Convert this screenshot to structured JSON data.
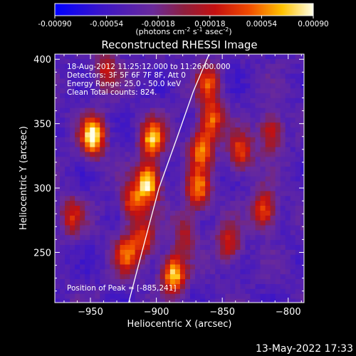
{
  "colorbar": {
    "ticks": [
      "-0.00090",
      "-0.00054",
      "-0.00018",
      "0.00018",
      "0.00054",
      "0.00090"
    ],
    "units": "(photons cm",
    "units_exp1": "-2",
    "units_mid": " s",
    "units_exp2": "-1",
    "units_mid2": " asec",
    "units_exp3": "-2",
    "units_end": ")"
  },
  "chart_data": {
    "type": "heatmap",
    "title": "Reconstructed RHESSI Image",
    "xlabel": "Heliocentric X (arcsec)",
    "ylabel": "Heliocentric Y (arcsec)",
    "xlim": [
      -977,
      -788
    ],
    "ylim": [
      211,
      404
    ],
    "xticks": [
      -950,
      -900,
      -850,
      -800
    ],
    "xtick_labels": [
      "−950",
      "−900",
      "−850",
      "−800"
    ],
    "yticks": [
      250,
      300,
      350,
      400
    ],
    "ytick_labels": [
      "250",
      "300",
      "350",
      "400"
    ],
    "color_range": [
      -0.0009,
      0.0009
    ],
    "colormap": "RHESSI blue-purple-red-yellow-white",
    "limb_curve": [
      [
        -921,
        211
      ],
      [
        -911,
        250
      ],
      [
        -898,
        300
      ],
      [
        -884,
        340
      ],
      [
        -872,
        375
      ],
      [
        -860,
        404
      ]
    ],
    "blobs": [
      {
        "x": -950,
        "y": 342,
        "amp": 1.0
      },
      {
        "x": -905,
        "y": 340,
        "amp": 0.8
      },
      {
        "x": -908,
        "y": 306,
        "amp": 0.95
      },
      {
        "x": -920,
        "y": 290,
        "amp": 0.6
      },
      {
        "x": -912,
        "y": 262,
        "amp": 0.55
      },
      {
        "x": -925,
        "y": 250,
        "amp": 0.6
      },
      {
        "x": -889,
        "y": 235,
        "amp": 0.9
      },
      {
        "x": -870,
        "y": 300,
        "amp": 0.7
      },
      {
        "x": -868,
        "y": 332,
        "amp": 0.7
      },
      {
        "x": -860,
        "y": 355,
        "amp": 0.65
      },
      {
        "x": -862,
        "y": 383,
        "amp": 0.55
      },
      {
        "x": -838,
        "y": 330,
        "amp": 0.6
      },
      {
        "x": -820,
        "y": 285,
        "amp": 0.65
      },
      {
        "x": -815,
        "y": 345,
        "amp": 0.55
      },
      {
        "x": -847,
        "y": 258,
        "amp": 0.5
      },
      {
        "x": -940,
        "y": 393,
        "amp": 0.45
      },
      {
        "x": -966,
        "y": 280,
        "amp": 0.45
      },
      {
        "x": -880,
        "y": 268,
        "amp": 0.4
      }
    ],
    "annotations": [
      "18-Aug-2012 11:25:12.000 to 11:26:00.000",
      "Detectors: 3F 5F 6F 7F 8F, Att 0",
      "Energy Range: 25.0 - 50.0 keV",
      "Clean      Total counts: 824."
    ],
    "peak_label": "Position of Peak = [-885,241]"
  },
  "footer": {
    "timestamp": "13-May-2022 17:33"
  }
}
